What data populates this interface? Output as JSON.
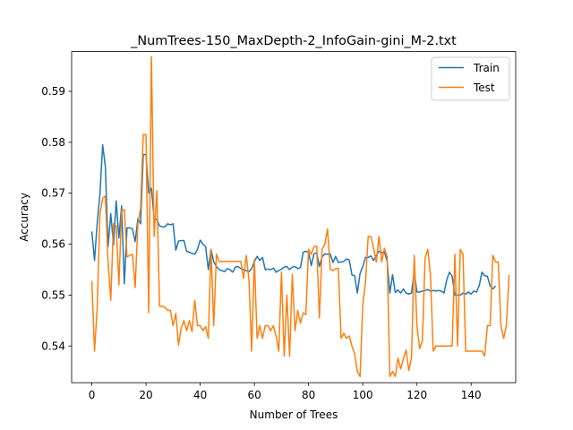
{
  "chart_data": {
    "type": "line",
    "title": "_NumTrees-150_MaxDepth-2_InfoGain-gini_M-2.txt",
    "xlabel": "Number of Trees",
    "ylabel": "Accuracy",
    "xlim": [
      -7.45,
      156.45
    ],
    "ylim": [
      0.5328,
      0.5978
    ],
    "xticks": [
      0,
      20,
      40,
      60,
      80,
      100,
      120,
      140
    ],
    "yticks": [
      0.54,
      0.55,
      0.56,
      0.57,
      0.58,
      0.59
    ],
    "ytick_labels": [
      "0.54",
      "0.55",
      "0.56",
      "0.57",
      "0.58",
      "0.59"
    ],
    "grid": false,
    "legend_position": "top-right",
    "colors": {
      "Train": "#1f77b4",
      "Test": "#ff7f0e"
    },
    "series": [
      {
        "name": "Train",
        "values": [
          0.5625,
          0.5568,
          0.5642,
          0.5698,
          0.5795,
          0.5752,
          0.5595,
          0.566,
          0.5598,
          0.5685,
          0.5612,
          0.5675,
          0.5522,
          0.5632,
          0.5632,
          0.563,
          0.5605,
          0.565,
          0.564,
          0.5776,
          0.5776,
          0.57,
          0.571,
          0.565,
          0.5648,
          0.5636,
          0.5634,
          0.5634,
          0.564,
          0.5638,
          0.564,
          0.5588,
          0.5606,
          0.5607,
          0.5607,
          0.5586,
          0.5584,
          0.5582,
          0.558,
          0.559,
          0.5608,
          0.56,
          0.5595,
          0.555,
          0.559,
          0.5565,
          0.5556,
          0.555,
          0.5548,
          0.5546,
          0.5552,
          0.555,
          0.5545,
          0.5555,
          0.5556,
          0.5552,
          0.555,
          0.5548,
          0.5546,
          0.5552,
          0.5566,
          0.5576,
          0.5568,
          0.5574,
          0.555,
          0.5551,
          0.555,
          0.5553,
          0.5545,
          0.5548,
          0.5551,
          0.5555,
          0.5556,
          0.555,
          0.5555,
          0.5556,
          0.5552,
          0.5554,
          0.5584,
          0.5586,
          0.5584,
          0.5558,
          0.5581,
          0.5583,
          0.5556,
          0.5575,
          0.5581,
          0.558,
          0.5581,
          0.5564,
          0.5576,
          0.5564,
          0.5565,
          0.5566,
          0.5571,
          0.5569,
          0.554,
          0.5538,
          0.5504,
          0.5542,
          0.5556,
          0.5574,
          0.5574,
          0.5577,
          0.5568,
          0.5578,
          0.5586,
          0.5583,
          0.5585,
          0.5566,
          0.5504,
          0.554,
          0.5505,
          0.551,
          0.5504,
          0.5512,
          0.5504,
          0.5502,
          0.5504,
          0.5546,
          0.5506,
          0.5506,
          0.5508,
          0.5509,
          0.5511,
          0.5508,
          0.5509,
          0.5508,
          0.5509,
          0.5508,
          0.5504,
          0.553,
          0.5545,
          0.5537,
          0.55,
          0.55,
          0.55,
          0.5504,
          0.5502,
          0.5506,
          0.5502,
          0.5508,
          0.5506,
          0.5519,
          0.5545,
          0.5538,
          0.5537,
          0.5518,
          0.5512,
          0.5518
        ]
      },
      {
        "name": "Test",
        "values": [
          0.5528,
          0.539,
          0.5475,
          0.566,
          0.569,
          0.5695,
          0.5565,
          0.549,
          0.564,
          0.5636,
          0.552,
          0.5665,
          0.5668,
          0.5575,
          0.5578,
          0.558,
          0.5515,
          0.564,
          0.567,
          0.5815,
          0.5815,
          0.5465,
          0.5968,
          0.5615,
          0.5705,
          0.5478,
          0.5478,
          0.5476,
          0.547,
          0.547,
          0.544,
          0.5464,
          0.5402,
          0.5435,
          0.545,
          0.543,
          0.545,
          0.5428,
          0.549,
          0.544,
          0.544,
          0.543,
          0.5438,
          0.5415,
          0.559,
          0.544,
          0.558,
          0.5566,
          0.5566,
          0.5566,
          0.5566,
          0.5566,
          0.5566,
          0.5566,
          0.5566,
          0.5566,
          0.5533,
          0.5578,
          0.553,
          0.539,
          0.557,
          0.5415,
          0.544,
          0.5415,
          0.544,
          0.544,
          0.543,
          0.544,
          0.542,
          0.539,
          0.5545,
          0.538,
          0.55,
          0.538,
          0.554,
          0.543,
          0.547,
          0.5445,
          0.5465,
          0.5462,
          0.559,
          0.558,
          0.5595,
          0.5596,
          0.5455,
          0.559,
          0.56,
          0.563,
          0.555,
          0.5548,
          0.5552,
          0.5552,
          0.5415,
          0.5425,
          0.5415,
          0.542,
          0.54,
          0.5385,
          0.535,
          0.534,
          0.548,
          0.5525,
          0.5615,
          0.5615,
          0.5592,
          0.5565,
          0.5615,
          0.5565,
          0.5592,
          0.5575,
          0.534,
          0.535,
          0.534,
          0.5376,
          0.5355,
          0.5375,
          0.5392,
          0.5352,
          0.5378,
          0.5578,
          0.544,
          0.5395,
          0.541,
          0.5572,
          0.559,
          0.554,
          0.539,
          0.54,
          0.54,
          0.54,
          0.54,
          0.54,
          0.54,
          0.54,
          0.558,
          0.54,
          0.559,
          0.558,
          0.539,
          0.539,
          0.539,
          0.539,
          0.539,
          0.539,
          0.539,
          0.538,
          0.544,
          0.544,
          0.5578,
          0.5565,
          0.5565,
          0.544,
          0.5415,
          0.544,
          0.554
        ]
      }
    ]
  }
}
